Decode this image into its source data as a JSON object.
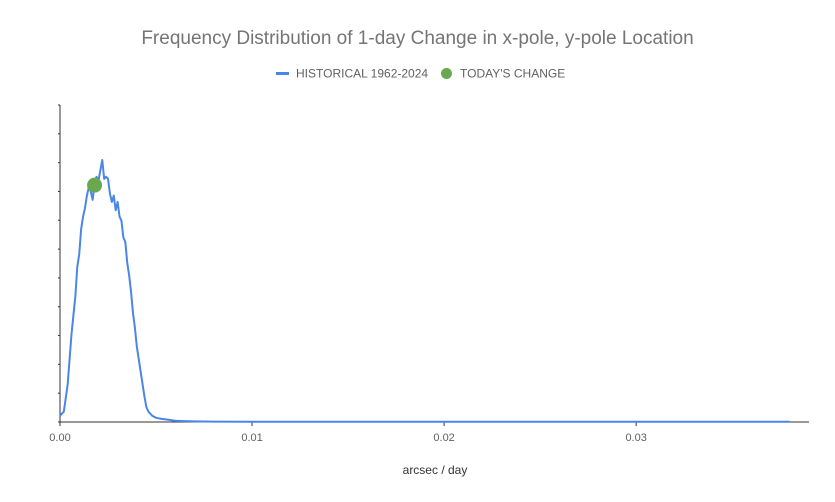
{
  "chart_data": {
    "type": "line",
    "title": "Frequency Distribution of 1-day Change in x-pole, y-pole Location",
    "xlabel": "arcsec / day",
    "ylabel": "",
    "xlim": [
      0,
      0.039
    ],
    "ylim": [
      0,
      1.25
    ],
    "x_ticks": [
      0,
      0.01,
      0.02,
      0.03
    ],
    "x_tick_labels": [
      "0.00",
      "0.01",
      "0.02",
      "0.03"
    ],
    "grid": false,
    "legend_position": "top",
    "legend": [
      {
        "label": "HISTORICAL 1962-2024",
        "symbol": "line",
        "color": "#4a86e8"
      },
      {
        "label": "TODAY'S CHANGE",
        "symbol": "dot",
        "color": "#6aa84f"
      }
    ],
    "series": [
      {
        "name": "HISTORICAL 1962-2024",
        "color": "#4a86e8",
        "x": [
          0,
          0.0002,
          0.0004,
          0.0006,
          0.0008,
          0.0009,
          0.001,
          0.0011,
          0.0012,
          0.0013,
          0.0014,
          0.0015,
          0.0016,
          0.0017,
          0.0018,
          0.0019,
          0.002,
          0.0021,
          0.0022,
          0.0023,
          0.0024,
          0.0025,
          0.0026,
          0.0027,
          0.0028,
          0.0029,
          0.003,
          0.0031,
          0.0032,
          0.0033,
          0.0034,
          0.0035,
          0.0036,
          0.0037,
          0.0038,
          0.0039,
          0.004,
          0.0041,
          0.0042,
          0.0043,
          0.0044,
          0.0045,
          0.0046,
          0.0047,
          0.0048,
          0.005,
          0.0053,
          0.0057,
          0.006,
          0.0065,
          0.007,
          0.008,
          0.01,
          0.015,
          0.02,
          0.025,
          0.03,
          0.035,
          0.038
        ],
        "values": [
          0.03,
          0.05,
          0.18,
          0.42,
          0.6,
          0.74,
          0.8,
          0.92,
          0.98,
          1.02,
          1.08,
          1.12,
          1.1,
          1.06,
          1.14,
          1.17,
          1.15,
          1.2,
          1.25,
          1.16,
          1.17,
          1.16,
          1.09,
          1.05,
          1.08,
          1.01,
          1.05,
          0.98,
          0.96,
          0.88,
          0.86,
          0.76,
          0.7,
          0.62,
          0.52,
          0.45,
          0.36,
          0.3,
          0.24,
          0.18,
          0.12,
          0.07,
          0.05,
          0.04,
          0.03,
          0.02,
          0.015,
          0.01,
          0.006,
          0.004,
          0.003,
          0.002,
          0.001,
          0.001,
          0.001,
          0.001,
          0.001,
          0.001,
          0.001
        ]
      }
    ],
    "highlight_point": {
      "name": "TODAY'S CHANGE",
      "x": 0.0018,
      "y": 1.13,
      "color": "#6aa84f"
    }
  }
}
